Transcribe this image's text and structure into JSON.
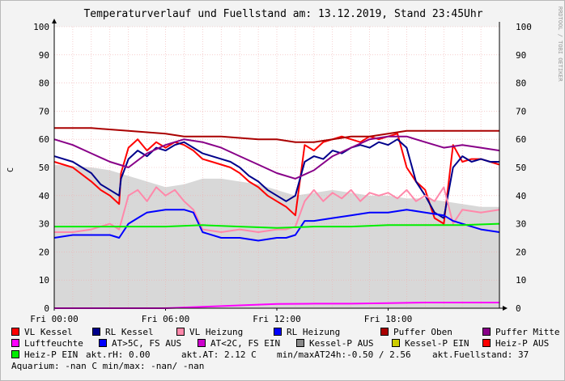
{
  "chart_data": {
    "type": "line",
    "title": "Temperaturverlauf und Fuellstand am: 13.12.2019, Stand 23:45Uhr",
    "ylabel": "C",
    "xlabel": "",
    "side_label": "RRDTOOL / TOBI OETIKER",
    "ylim": [
      0,
      100
    ],
    "yticks": [
      0,
      10,
      20,
      30,
      40,
      50,
      60,
      70,
      80,
      90,
      100
    ],
    "xlim": [
      0,
      24
    ],
    "xticks": [
      {
        "value": 0,
        "label": "Fri 00:00"
      },
      {
        "value": 6,
        "label": "Fri 06:00"
      },
      {
        "value": 12,
        "label": "Fri 12:00"
      },
      {
        "value": 18,
        "label": "Fri 18:00"
      }
    ],
    "grid": true,
    "legend_position": "bottom",
    "series": [
      {
        "name": "VL Kessel",
        "color": "#ff0000",
        "x": [
          0,
          1,
          2,
          2.5,
          3,
          3.5,
          3.6,
          4,
          4.5,
          5,
          5.5,
          6,
          6.5,
          7,
          7.5,
          8,
          8.5,
          9,
          9.5,
          10,
          10.5,
          11,
          11.5,
          12,
          12.5,
          13,
          13.5,
          14,
          14.5,
          15,
          15.5,
          16,
          16.5,
          17,
          17.5,
          18,
          18.5,
          19,
          19.5,
          20,
          20.5,
          21,
          21.5,
          22,
          22.5,
          23,
          23.5,
          24
        ],
        "y": [
          52,
          50,
          45,
          42,
          40,
          37,
          48,
          57,
          60,
          56,
          59,
          57,
          59,
          58,
          56,
          53,
          52,
          51,
          50,
          48,
          45,
          43,
          40,
          38,
          36,
          33,
          58,
          56,
          59,
          60,
          61,
          60,
          59,
          61,
          60,
          61,
          62,
          50,
          45,
          42,
          32,
          30,
          58,
          52,
          53,
          53,
          52,
          51
        ]
      },
      {
        "name": "RL Kessel",
        "color": "#00008b",
        "x": [
          0,
          1,
          2,
          2.5,
          3,
          3.5,
          3.6,
          4,
          4.5,
          5,
          5.5,
          6,
          6.5,
          7,
          7.5,
          8,
          8.5,
          9,
          9.5,
          10,
          10.5,
          11,
          11.5,
          12,
          12.5,
          13,
          13.5,
          14,
          14.5,
          15,
          15.5,
          16,
          16.5,
          17,
          17.5,
          18,
          18.5,
          19,
          19.5,
          20,
          20.5,
          21,
          21.5,
          22,
          22.5,
          23,
          23.5,
          24
        ],
        "y": [
          54,
          52,
          48,
          44,
          42,
          40,
          46,
          53,
          56,
          54,
          57,
          56,
          58,
          59,
          57,
          55,
          54,
          53,
          52,
          50,
          47,
          45,
          42,
          40,
          38,
          40,
          52,
          54,
          53,
          56,
          55,
          57,
          58,
          57,
          59,
          58,
          60,
          57,
          45,
          40,
          34,
          32,
          50,
          54,
          52,
          53,
          52,
          52
        ]
      },
      {
        "name": "VL Heizung",
        "color": "#ff88aa",
        "x": [
          0,
          1,
          2,
          3,
          3.5,
          4,
          4.5,
          5,
          5.5,
          6,
          6.5,
          7,
          7.5,
          8,
          9,
          10,
          11,
          12,
          12.5,
          13,
          13.5,
          14,
          14.5,
          15,
          15.5,
          16,
          16.5,
          17,
          17.5,
          18,
          18.5,
          19,
          19.5,
          20,
          20.5,
          21,
          21.5,
          22,
          23,
          24
        ],
        "y": [
          27,
          27,
          28,
          30,
          28,
          40,
          42,
          38,
          43,
          40,
          42,
          38,
          35,
          28,
          27,
          28,
          27,
          28,
          28,
          29,
          38,
          42,
          38,
          41,
          39,
          42,
          38,
          41,
          40,
          41,
          39,
          42,
          38,
          40,
          38,
          43,
          30,
          35,
          34,
          35
        ]
      },
      {
        "name": "RL Heizung",
        "color": "#0000ff",
        "x": [
          0,
          1,
          2,
          3,
          3.5,
          4,
          4.5,
          5,
          6,
          7,
          7.5,
          8,
          9,
          10,
          11,
          12,
          12.5,
          13,
          13.5,
          14,
          15,
          16,
          17,
          18,
          19,
          20,
          21,
          21.5,
          22,
          23,
          24
        ],
        "y": [
          25,
          26,
          26,
          26,
          25,
          30,
          32,
          34,
          35,
          35,
          34,
          27,
          25,
          25,
          24,
          25,
          25,
          26,
          31,
          31,
          32,
          33,
          34,
          34,
          35,
          34,
          33,
          31,
          30,
          28,
          27
        ]
      },
      {
        "name": "Puffer Oben",
        "color": "#aa0000",
        "x": [
          0,
          2,
          4,
          6,
          7,
          9,
          11,
          12,
          13,
          14,
          15,
          16,
          17,
          18,
          19,
          20,
          21,
          22,
          23,
          24
        ],
        "y": [
          64,
          64,
          63,
          62,
          61,
          61,
          60,
          60,
          59,
          59,
          60,
          61,
          61,
          62,
          63,
          63,
          63,
          63,
          63,
          63
        ]
      },
      {
        "name": "Puffer Mitte",
        "color": "#880088",
        "x": [
          0,
          1,
          2,
          3,
          4,
          5,
          6,
          7,
          8,
          9,
          10,
          11,
          12,
          13,
          14,
          15,
          16,
          17,
          18,
          19,
          20,
          21,
          22,
          23,
          24
        ],
        "y": [
          60,
          58,
          55,
          52,
          50,
          55,
          58,
          60,
          59,
          57,
          54,
          51,
          48,
          46,
          49,
          54,
          57,
          60,
          61,
          61,
          59,
          57,
          58,
          57,
          56
        ]
      },
      {
        "name": "Luftfeuchte",
        "color": "#ff00ff",
        "x": [
          0,
          3,
          6,
          8,
          10,
          12,
          14,
          16,
          18,
          20,
          22,
          24
        ],
        "y": [
          0,
          0,
          0,
          0.5,
          1,
          1.5,
          1.6,
          1.6,
          1.8,
          2,
          2,
          2
        ]
      },
      {
        "name": "AT>5C, FS AUS",
        "color": "#0000ff",
        "x": [],
        "y": []
      },
      {
        "name": "AT<2C, FS EIN",
        "color": "#cc00cc",
        "x": [],
        "y": []
      },
      {
        "name": "Kessel-P AUS",
        "color": "#888888",
        "x": [],
        "y": []
      },
      {
        "name": "Kessel-P EIN",
        "color": "#cccc00",
        "x": [],
        "y": []
      },
      {
        "name": "Heiz-P AUS",
        "color": "#ff0000",
        "x": [],
        "y": []
      },
      {
        "name": "Heiz-P EIN",
        "color": "#00ee00",
        "x": [
          0,
          4,
          6,
          8,
          10,
          12,
          14,
          16,
          18,
          20,
          22,
          24
        ],
        "y": [
          29,
          29,
          29,
          29.5,
          29,
          28.5,
          29,
          29,
          29.5,
          29.5,
          29.5,
          30
        ]
      }
    ],
    "area": {
      "name": "akt.Fuellstand",
      "color": "#d8d8d8",
      "x": [
        0,
        2,
        3,
        4,
        5,
        6,
        7,
        8,
        9,
        10,
        11,
        12,
        12.5,
        13,
        14,
        15,
        16,
        17,
        18,
        19,
        20,
        21,
        22,
        23,
        24
      ],
      "y": [
        51,
        50,
        49,
        47,
        45,
        43,
        44,
        46,
        46,
        45,
        44,
        42,
        41,
        40,
        41,
        42,
        41,
        40,
        40,
        39,
        39,
        38,
        37,
        36,
        36
      ]
    },
    "status": {
      "akt_rh_label": "akt.rH:",
      "akt_rh_value": "0.00",
      "akt_at_label": "akt.AT:",
      "akt_at_value": "2.12 C",
      "minmax_label": "min/maxAT24h:",
      "minmax_value": "-0.50 / 2.56",
      "fuellstand_label": "akt.Fuellstand:",
      "fuellstand_value": "37",
      "aquarium_line": "Aquarium: -nan C  min/max: -nan/ -nan"
    }
  }
}
